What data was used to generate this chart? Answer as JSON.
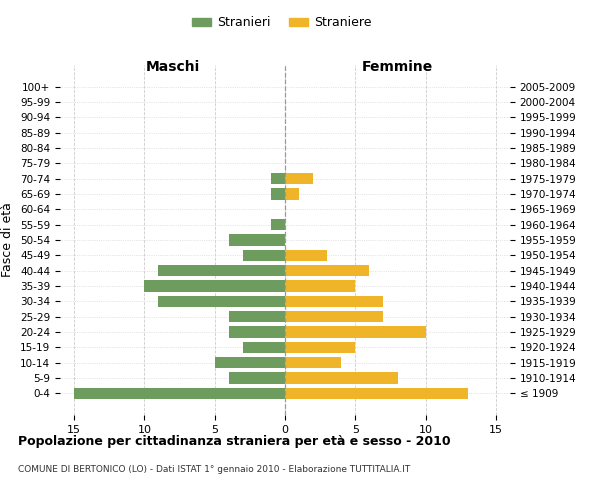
{
  "age_groups": [
    "100+",
    "95-99",
    "90-94",
    "85-89",
    "80-84",
    "75-79",
    "70-74",
    "65-69",
    "60-64",
    "55-59",
    "50-54",
    "45-49",
    "40-44",
    "35-39",
    "30-34",
    "25-29",
    "20-24",
    "15-19",
    "10-14",
    "5-9",
    "0-4"
  ],
  "birth_years": [
    "≤ 1909",
    "1910-1914",
    "1915-1919",
    "1920-1924",
    "1925-1929",
    "1930-1934",
    "1935-1939",
    "1940-1944",
    "1945-1949",
    "1950-1954",
    "1955-1959",
    "1960-1964",
    "1965-1969",
    "1970-1974",
    "1975-1979",
    "1980-1984",
    "1985-1989",
    "1990-1994",
    "1995-1999",
    "2000-2004",
    "2005-2009"
  ],
  "maschi": [
    0,
    0,
    0,
    0,
    0,
    0,
    1,
    1,
    0,
    1,
    4,
    3,
    9,
    10,
    9,
    4,
    4,
    3,
    5,
    4,
    15
  ],
  "femmine": [
    0,
    0,
    0,
    0,
    0,
    0,
    2,
    1,
    0,
    0,
    0,
    3,
    6,
    5,
    7,
    7,
    10,
    5,
    4,
    8,
    13
  ],
  "color_maschi": "#6e9c5f",
  "color_femmine": "#f0b429",
  "title": "Popolazione per cittadinanza straniera per età e sesso - 2010",
  "subtitle": "COMUNE DI BERTONICO (LO) - Dati ISTAT 1° gennaio 2010 - Elaborazione TUTTITALIA.IT",
  "xlabel_left": "Maschi",
  "xlabel_right": "Femmine",
  "ylabel_left": "Fasce di età",
  "legend_maschi": "Stranieri",
  "legend_femmine": "Straniere",
  "xlim": 16,
  "background_color": "#ffffff",
  "grid_color": "#cccccc"
}
